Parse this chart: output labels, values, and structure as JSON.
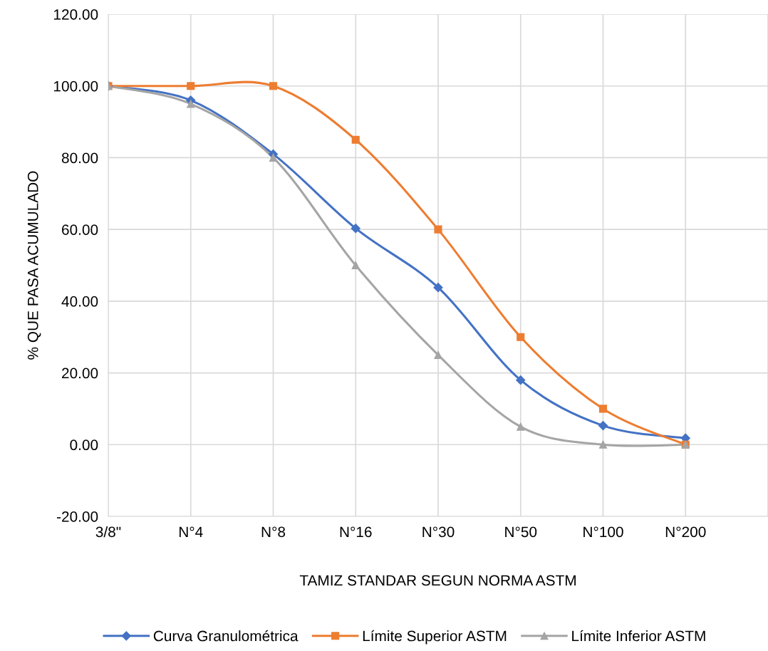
{
  "chart_data": {
    "type": "line",
    "xlabel": "TAMIZ STANDAR SEGUN NORMA ASTM",
    "ylabel": "% QUE PASA ACUMULADO",
    "categories": [
      "3/8\"",
      "N°4",
      "N°8",
      "N°16",
      "N°30",
      "N°50",
      "N°100",
      "N°200",
      null
    ],
    "series": [
      {
        "name": "Curva Granulométrica",
        "color": "#4472c4",
        "marker": "diamond",
        "values": [
          100,
          96,
          81,
          60.3,
          43.8,
          18,
          5.3,
          1.8,
          null
        ]
      },
      {
        "name": "Límite Superior ASTM",
        "color": "#ed7d31",
        "marker": "square",
        "values": [
          100,
          100,
          100,
          85,
          60,
          30,
          10,
          0,
          null
        ]
      },
      {
        "name": "Límite Inferior ASTM",
        "color": "#a5a5a5",
        "marker": "triangle",
        "values": [
          100,
          95,
          80,
          50,
          25,
          5,
          0,
          0,
          null
        ]
      }
    ],
    "ylim": [
      -20,
      120
    ],
    "yticks": [
      {
        "value": -20,
        "label": "-20.00"
      },
      {
        "value": 0,
        "label": "0.00"
      },
      {
        "value": 20,
        "label": "20.00"
      },
      {
        "value": 40,
        "label": "40.00"
      },
      {
        "value": 60,
        "label": "60.00"
      },
      {
        "value": 80,
        "label": "80.00"
      },
      {
        "value": 100,
        "label": "100.00"
      },
      {
        "value": 120,
        "label": "120.00"
      }
    ],
    "grid": true,
    "legend": "bottom",
    "line_style": "solid"
  }
}
